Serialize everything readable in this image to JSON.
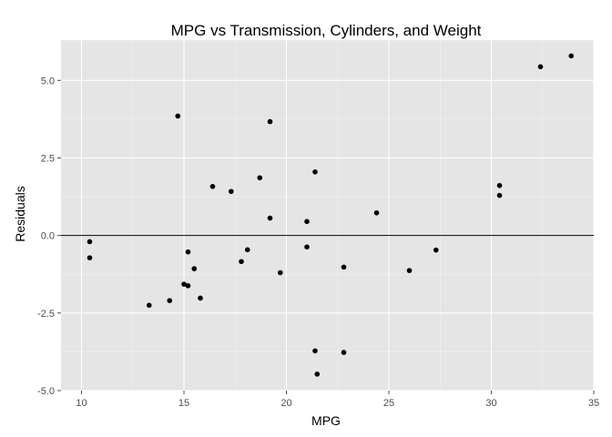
{
  "chart_data": {
    "type": "scatter",
    "title": "MPG vs Transmission, Cylinders, and Weight",
    "xlabel": "MPG",
    "ylabel": "Residuals",
    "xlim": [
      9.0,
      35.0
    ],
    "ylim": [
      -5.0,
      6.3
    ],
    "xticks": [
      10,
      15,
      20,
      25,
      30,
      35
    ],
    "yticks": [
      -5.0,
      -2.5,
      0.0,
      2.5,
      5.0
    ],
    "xtick_labels": [
      "10",
      "15",
      "20",
      "25",
      "30",
      "35"
    ],
    "ytick_labels": [
      "-5.0",
      "-2.5",
      "0.0",
      "2.5",
      "5.0"
    ],
    "hline": 0,
    "grid": true,
    "colors": {
      "panel": "#e5e5e5",
      "grid_major": "#ffffff",
      "grid_minor": "#f2f2f2",
      "point": "#000000",
      "tick": "#4d4d4d"
    },
    "points": [
      {
        "x": 10.4,
        "y": -0.2
      },
      {
        "x": 10.4,
        "y": -0.72
      },
      {
        "x": 13.3,
        "y": -2.25
      },
      {
        "x": 14.3,
        "y": -2.1
      },
      {
        "x": 14.7,
        "y": 3.85
      },
      {
        "x": 15.0,
        "y": -1.57
      },
      {
        "x": 15.2,
        "y": -0.53
      },
      {
        "x": 15.2,
        "y": -1.62
      },
      {
        "x": 15.5,
        "y": -1.07
      },
      {
        "x": 15.8,
        "y": -2.02
      },
      {
        "x": 16.4,
        "y": 1.58
      },
      {
        "x": 17.3,
        "y": 1.42
      },
      {
        "x": 17.8,
        "y": -0.84
      },
      {
        "x": 18.1,
        "y": -0.46
      },
      {
        "x": 18.7,
        "y": 1.86
      },
      {
        "x": 19.2,
        "y": 3.67
      },
      {
        "x": 19.2,
        "y": 0.56
      },
      {
        "x": 19.7,
        "y": -1.2
      },
      {
        "x": 21.0,
        "y": 0.45
      },
      {
        "x": 21.0,
        "y": -0.37
      },
      {
        "x": 21.4,
        "y": 2.05
      },
      {
        "x": 21.4,
        "y": -3.72
      },
      {
        "x": 21.5,
        "y": -4.47
      },
      {
        "x": 22.8,
        "y": -1.02
      },
      {
        "x": 22.8,
        "y": -3.77
      },
      {
        "x": 24.4,
        "y": 0.73
      },
      {
        "x": 26.0,
        "y": -1.13
      },
      {
        "x": 27.3,
        "y": -0.47
      },
      {
        "x": 30.4,
        "y": 1.61
      },
      {
        "x": 30.4,
        "y": 1.29
      },
      {
        "x": 32.4,
        "y": 5.44
      },
      {
        "x": 33.9,
        "y": 5.79
      }
    ]
  }
}
